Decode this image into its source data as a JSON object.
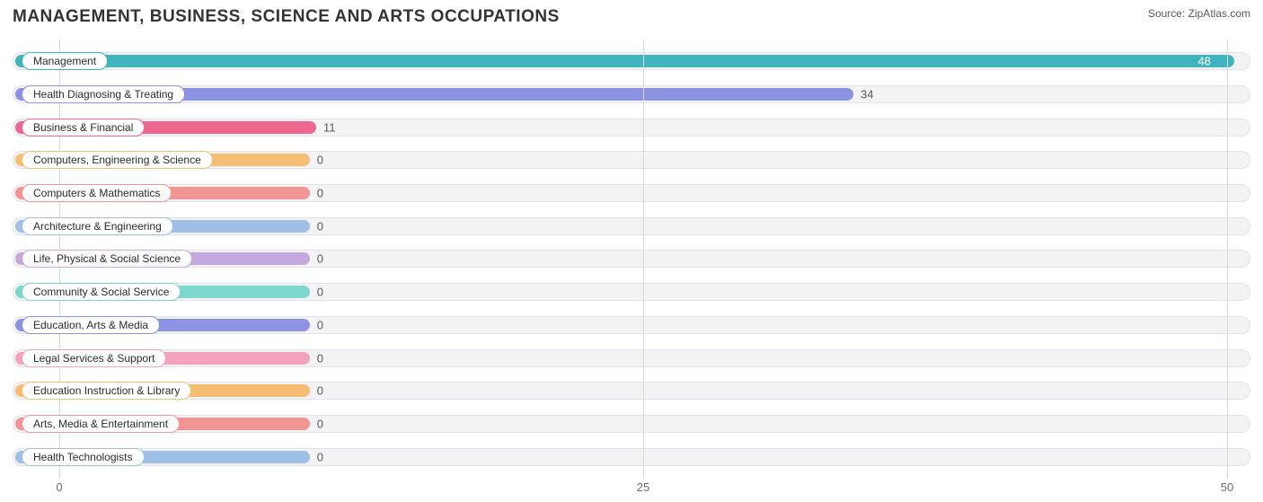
{
  "title": "MANAGEMENT, BUSINESS, SCIENCE AND ARTS OCCUPATIONS",
  "source_label": "Source:",
  "source_site": "ZipAtlas.com",
  "chart": {
    "type": "bar-horizontal",
    "background_color": "#ffffff",
    "track_bg": "#f3f3f5",
    "track_border": "#e2e2e7",
    "grid_color": "#d9d9de",
    "xlim": [
      -2,
      51
    ],
    "xticks": [
      0,
      25,
      50
    ],
    "zero_offset_pct": 24.0,
    "categories": [
      {
        "label": "Management",
        "value": 48,
        "color": "#3fb6bd"
      },
      {
        "label": "Health Diagnosing & Treating",
        "value": 34,
        "color": "#8c93e2"
      },
      {
        "label": "Business & Financial",
        "value": 11,
        "color": "#ee6790"
      },
      {
        "label": "Computers, Engineering & Science",
        "value": 0,
        "color": "#f6be72"
      },
      {
        "label": "Computers & Mathematics",
        "value": 0,
        "color": "#f19494"
      },
      {
        "label": "Architecture & Engineering",
        "value": 0,
        "color": "#9fbfe6"
      },
      {
        "label": "Life, Physical & Social Science",
        "value": 0,
        "color": "#c4a7dd"
      },
      {
        "label": "Community & Social Service",
        "value": 0,
        "color": "#7ed7cc"
      },
      {
        "label": "Education, Arts & Media",
        "value": 0,
        "color": "#8c93e2"
      },
      {
        "label": "Legal Services & Support",
        "value": 0,
        "color": "#f1a3bd"
      },
      {
        "label": "Education Instruction & Library",
        "value": 0,
        "color": "#f6be72"
      },
      {
        "label": "Arts, Media & Entertainment",
        "value": 0,
        "color": "#f19494"
      },
      {
        "label": "Health Technologists",
        "value": 0,
        "color": "#9fbfe6"
      }
    ],
    "pill_bg": "#ffffff",
    "pill_text_color": "#2b2b30",
    "value_text_color": "#58585e",
    "title_fontsize": 19,
    "label_fontsize": 12,
    "value_fontsize": 13
  }
}
